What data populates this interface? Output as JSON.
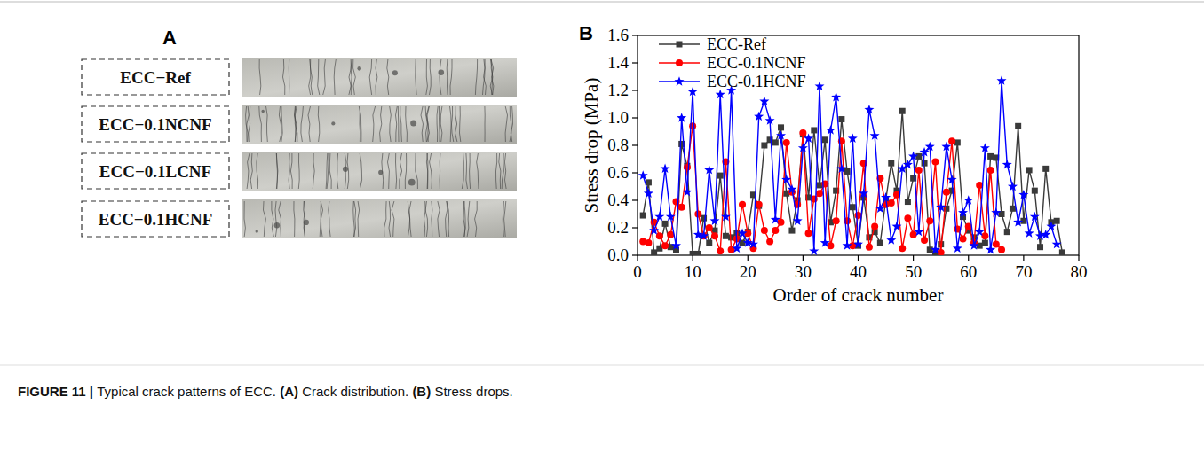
{
  "panel_a": {
    "letter": "A",
    "labels": [
      "ECC−Ref",
      "ECC−0.1NCNF",
      "ECC−0.1LCNF",
      "ECC−0.1HCNF"
    ]
  },
  "panel_b": {
    "letter": "B"
  },
  "caption": {
    "label": "FIGURE 11 |",
    "text": "Typical crack patterns of ECC.",
    "parts": [
      {
        "letter": "(A)",
        "text": "Crack distribution."
      },
      {
        "letter": "(B)",
        "text": "Stress drops."
      }
    ]
  },
  "chart_data": {
    "type": "line",
    "x_label": "Order of crack number",
    "y_label": "Stress drop (MPa)",
    "xlim": [
      0,
      80
    ],
    "xticks": [
      0,
      10,
      20,
      30,
      40,
      50,
      60,
      70,
      80
    ],
    "ylim": [
      0,
      1.6
    ],
    "yticks": [
      {
        "value": 0,
        "label": "0.0"
      },
      0.2,
      0.4,
      0.6,
      0.8,
      {
        "value": 1,
        "label": "1.0"
      },
      1.2,
      1.4,
      1.6
    ],
    "grid": false,
    "legend": "upper left",
    "series": [
      {
        "name": "ECC-Ref",
        "color": "#3a3a3a",
        "marker": "square",
        "line_style": "solid",
        "x": [
          1,
          2,
          3,
          4,
          5,
          6,
          7,
          8,
          9,
          10,
          11,
          12,
          13,
          14,
          15,
          16,
          17,
          18,
          19,
          20,
          21,
          22,
          23,
          24,
          25,
          26,
          27,
          28,
          29,
          30,
          31,
          32,
          33,
          34,
          35,
          36,
          37,
          38,
          39,
          40,
          41,
          42,
          43,
          44,
          45,
          46,
          47,
          48,
          49,
          50,
          51,
          52,
          53,
          54,
          55,
          56,
          57,
          58,
          59,
          60,
          61,
          62,
          63,
          64,
          65,
          66,
          67,
          68,
          69,
          70,
          71,
          72,
          73,
          74,
          75,
          76,
          77
        ],
        "values": [
          0.29,
          0.53,
          0.02,
          0.05,
          0.23,
          0.06,
          0.04,
          0.81,
          0.65,
          0.01,
          0.01,
          0.27,
          0.09,
          0.18,
          0.58,
          0.14,
          0.13,
          0.16,
          0.09,
          0.17,
          0.44,
          0.36,
          0.8,
          0.84,
          0.82,
          0.93,
          0.45,
          0.18,
          0.4,
          0.88,
          0.42,
          0.91,
          0.51,
          0.84,
          0.24,
          0.47,
          0.99,
          0.61,
          0.35,
          0.07,
          0.42,
          0.13,
          0.17,
          0.09,
          0.4,
          0.67,
          0.47,
          1.05,
          0.39,
          0.56,
          0.72,
          0.67,
          0.04,
          0.01,
          0.08,
          0.34,
          0.47,
          0.82,
          0.28,
          0.18,
          0.13,
          0.07,
          0.09,
          0.72,
          0.71,
          0.3,
          0.17,
          0.34,
          0.94,
          0.25,
          0.62,
          0.47,
          0.06,
          0.63,
          0.24,
          0.25,
          0.02
        ]
      },
      {
        "name": "ECC-0.1NCNF",
        "color": "#ff0000",
        "marker": "circle",
        "line_style": "solid",
        "x": [
          1,
          2,
          3,
          4,
          5,
          6,
          7,
          8,
          9,
          10,
          11,
          12,
          13,
          14,
          15,
          16,
          17,
          18,
          19,
          20,
          21,
          22,
          23,
          24,
          25,
          26,
          27,
          28,
          29,
          30,
          31,
          32,
          33,
          34,
          35,
          36,
          37,
          38,
          39,
          40,
          41,
          42,
          43,
          44,
          45,
          46,
          47,
          48,
          49,
          50,
          51,
          52,
          53,
          54,
          55,
          56,
          57,
          58,
          59,
          60,
          61,
          62,
          63,
          64,
          65,
          66
        ],
        "values": [
          0.1,
          0.09,
          0.24,
          0.14,
          0.07,
          0.15,
          0.39,
          0.35,
          0.64,
          0.94,
          0.3,
          0.14,
          0.2,
          0.14,
          0.03,
          0.68,
          0.04,
          0.12,
          0.37,
          0.16,
          0.05,
          0.37,
          0.18,
          0.1,
          0.18,
          0.24,
          0.82,
          0.46,
          0.37,
          0.89,
          0.16,
          0.41,
          0.45,
          0.52,
          0.07,
          0.25,
          0.83,
          0.25,
          0.07,
          0.29,
          0.67,
          0.06,
          0.21,
          0.56,
          0.37,
          0.38,
          0.44,
          0.05,
          0.27,
          0.15,
          0.62,
          0.11,
          0.25,
          0.68,
          0.02,
          0.46,
          0.83,
          0.19,
          0.12,
          0.21,
          0.09,
          0.51,
          0.14,
          0.62,
          0.08,
          0.04
        ]
      },
      {
        "name": "ECC-0.1HCNF",
        "color": "#0000ff",
        "marker": "star",
        "line_style": "solid",
        "x": [
          1,
          2,
          3,
          4,
          5,
          6,
          7,
          8,
          9,
          10,
          11,
          12,
          13,
          14,
          15,
          16,
          17,
          18,
          19,
          20,
          21,
          22,
          23,
          24,
          25,
          26,
          27,
          28,
          29,
          30,
          31,
          32,
          33,
          34,
          35,
          36,
          37,
          38,
          39,
          40,
          41,
          42,
          43,
          44,
          45,
          46,
          47,
          48,
          49,
          50,
          51,
          52,
          53,
          54,
          55,
          56,
          57,
          58,
          59,
          60,
          61,
          62,
          63,
          64,
          65,
          66,
          67,
          68,
          69,
          70,
          71,
          72,
          73,
          74,
          75,
          76
        ],
        "values": [
          0.58,
          0.45,
          0.18,
          0.28,
          0.63,
          0.28,
          0.07,
          1.0,
          0.46,
          1.19,
          0.15,
          0.14,
          0.62,
          0.25,
          1.17,
          0.28,
          1.2,
          0.05,
          0.16,
          0.09,
          0.08,
          1.01,
          1.12,
          0.98,
          0.26,
          0.87,
          0.55,
          0.48,
          0.25,
          0.78,
          0.85,
          0.03,
          1.23,
          0.09,
          0.91,
          1.15,
          0.63,
          0.07,
          0.85,
          0.08,
          0.45,
          1.06,
          0.87,
          0.34,
          0.42,
          0.11,
          0.21,
          0.63,
          0.66,
          0.72,
          0.17,
          0.75,
          0.79,
          0.04,
          0.35,
          0.79,
          0.55,
          0.05,
          0.31,
          0.4,
          0.07,
          0.17,
          0.78,
          0.04,
          0.31,
          1.27,
          0.66,
          0.5,
          0.24,
          0.44,
          0.16,
          0.28,
          0.14,
          0.15,
          0.21,
          0.08
        ]
      }
    ]
  }
}
